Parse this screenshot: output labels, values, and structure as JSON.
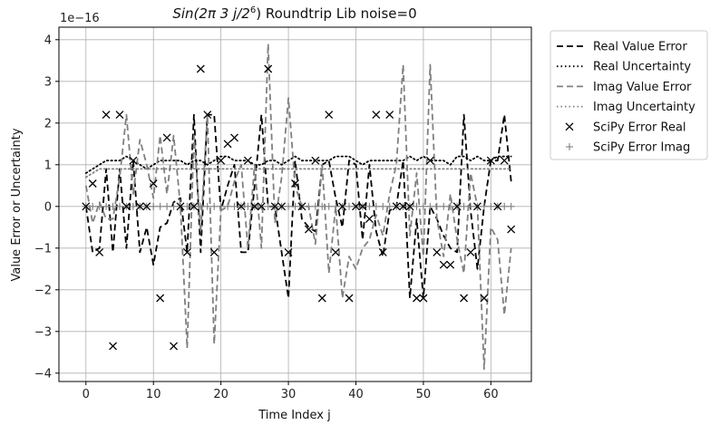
{
  "chart_data": {
    "type": "line",
    "title_prefix": "Sin(2π 3 j/2",
    "title_exp": "6",
    "title_suffix": ") Roundtrip Lib noise=0",
    "xlabel": "Time Index j",
    "ylabel": "Value Error or Uncertainty",
    "y_multiplier_label": "1e−16",
    "xlim": [
      -4,
      66
    ],
    "ylim": [
      -4.2,
      4.3
    ],
    "xticks": [
      0,
      10,
      20,
      30,
      40,
      50,
      60
    ],
    "yticks": [
      -4,
      -3,
      -2,
      -1,
      0,
      1,
      2,
      3,
      4
    ],
    "grid": true,
    "legend_position": "outside-right-top",
    "x": [
      0,
      1,
      2,
      3,
      4,
      5,
      6,
      7,
      8,
      9,
      10,
      11,
      12,
      13,
      14,
      15,
      16,
      17,
      18,
      19,
      20,
      21,
      22,
      23,
      24,
      25,
      26,
      27,
      28,
      29,
      30,
      31,
      32,
      33,
      34,
      35,
      36,
      37,
      38,
      39,
      40,
      41,
      42,
      43,
      44,
      45,
      46,
      47,
      48,
      49,
      50,
      51,
      52,
      53,
      54,
      55,
      56,
      57,
      58,
      59,
      60,
      61,
      62,
      63
    ],
    "series": [
      {
        "name": "Real Value Error",
        "style": "dashed",
        "color": "#000000",
        "values": [
          0,
          -1.1,
          -1.0,
          0.9,
          -1.1,
          0.9,
          -1.0,
          1.1,
          -1.1,
          -0.5,
          -1.4,
          -0.5,
          -0.4,
          0.1,
          0.2,
          -1.1,
          2.2,
          -1.1,
          2.2,
          2.2,
          -0.1,
          0.5,
          1.0,
          -1.1,
          -1.1,
          0.5,
          2.2,
          0.0,
          0.0,
          -1.1,
          -2.2,
          1.1,
          -0.3,
          -0.5,
          -0.6,
          1.0,
          1.1,
          0.2,
          -0.5,
          1.1,
          1.0,
          -0.8,
          1.0,
          -0.6,
          -1.2,
          -0.1,
          0.0,
          1.1,
          -2.2,
          -0.3,
          -2.2,
          0.0,
          -0.3,
          -0.7,
          -1.0,
          -1.1,
          2.2,
          -0.1,
          -1.5,
          0.0,
          1.1,
          1.1,
          2.2,
          0.6
        ]
      },
      {
        "name": "Real Uncertainty",
        "style": "dotted",
        "color": "#000000",
        "values": [
          0.8,
          0.9,
          1.0,
          1.1,
          1.1,
          1.1,
          1.2,
          1.1,
          1.0,
          0.9,
          1.0,
          1.1,
          1.1,
          1.1,
          1.1,
          1.0,
          1.1,
          1.1,
          1.0,
          1.1,
          1.2,
          1.2,
          1.1,
          1.1,
          1.1,
          1.0,
          1.0,
          1.1,
          1.1,
          1.0,
          1.1,
          1.2,
          1.1,
          1.1,
          1.1,
          1.1,
          1.1,
          1.2,
          1.2,
          1.2,
          1.1,
          1.0,
          1.1,
          1.1,
          1.1,
          1.1,
          1.1,
          1.1,
          1.2,
          1.1,
          1.2,
          1.1,
          1.1,
          1.1,
          1.0,
          1.2,
          1.2,
          1.1,
          1.2,
          1.1,
          1.1,
          1.2,
          1.2,
          1.2
        ]
      },
      {
        "name": "Imag Value Error",
        "style": "dashed",
        "color": "#808080",
        "values": [
          0.5,
          -0.4,
          0.1,
          -0.3,
          -0.3,
          0.7,
          2.2,
          0.3,
          1.6,
          1.0,
          0.2,
          1.7,
          0.3,
          1.7,
          0.0,
          -3.4,
          1.7,
          -0.6,
          2.2,
          -3.3,
          -0.1,
          0.0,
          0.6,
          1.0,
          -1.0,
          1.0,
          -1.0,
          3.9,
          -0.4,
          0.7,
          2.6,
          0.5,
          0.0,
          0.0,
          -0.9,
          1.0,
          -1.6,
          0.0,
          -2.2,
          -1.2,
          -1.5,
          -1.0,
          -0.8,
          -0.2,
          -0.7,
          0.3,
          1.0,
          3.4,
          -0.7,
          0.8,
          -1.2,
          3.4,
          -0.3,
          -1.2,
          0.3,
          -0.8,
          -1.6,
          0.8,
          0.0,
          -3.9,
          -0.5,
          -0.8,
          -2.6,
          -1.0
        ]
      },
      {
        "name": "Imag Uncertainty",
        "style": "dotted",
        "color": "#808080",
        "values": [
          0.7,
          0.8,
          0.9,
          0.9,
          0.9,
          0.9,
          0.9,
          0.9,
          0.9,
          0.9,
          0.9,
          0.9,
          0.9,
          0.9,
          0.9,
          0.9,
          0.9,
          0.9,
          0.9,
          0.9,
          0.9,
          0.9,
          0.9,
          0.9,
          0.9,
          0.9,
          0.9,
          0.9,
          0.9,
          0.9,
          0.9,
          0.9,
          0.9,
          0.9,
          0.9,
          0.9,
          0.9,
          0.9,
          0.9,
          0.9,
          0.9,
          0.9,
          0.9,
          0.9,
          0.9,
          0.9,
          0.9,
          0.9,
          0.9,
          0.9,
          0.9,
          0.9,
          0.9,
          0.9,
          0.9,
          0.9,
          0.9,
          0.9,
          0.9,
          0.9,
          0.9,
          0.9,
          0.9,
          0.9
        ]
      }
    ],
    "scatter_series": [
      {
        "name": "SciPy Error Real",
        "marker": "x",
        "color": "#000000",
        "points": [
          [
            0,
            0
          ],
          [
            1,
            0.55
          ],
          [
            2,
            -1.1
          ],
          [
            3,
            2.2
          ],
          [
            4,
            -3.35
          ],
          [
            5,
            2.2
          ],
          [
            6,
            0
          ],
          [
            7,
            1.1
          ],
          [
            8,
            0
          ],
          [
            9,
            0
          ],
          [
            10,
            0.55
          ],
          [
            11,
            -2.2
          ],
          [
            12,
            1.65
          ],
          [
            13,
            -3.35
          ],
          [
            14,
            0
          ],
          [
            15,
            -1.1
          ],
          [
            16,
            0
          ],
          [
            17,
            3.3
          ],
          [
            18,
            2.2
          ],
          [
            19,
            -1.1
          ],
          [
            20,
            1.1
          ],
          [
            21,
            1.5
          ],
          [
            22,
            1.65
          ],
          [
            23,
            0
          ],
          [
            24,
            1.1
          ],
          [
            25,
            0
          ],
          [
            26,
            0
          ],
          [
            27,
            3.3
          ],
          [
            28,
            0
          ],
          [
            29,
            0
          ],
          [
            30,
            -1.1
          ],
          [
            31,
            0.55
          ],
          [
            32,
            0
          ],
          [
            33,
            -0.55
          ],
          [
            34,
            1.1
          ],
          [
            35,
            -2.2
          ],
          [
            36,
            2.2
          ],
          [
            37,
            -1.1
          ],
          [
            38,
            0
          ],
          [
            39,
            -2.2
          ],
          [
            40,
            0
          ],
          [
            41,
            0
          ],
          [
            42,
            -0.3
          ],
          [
            43,
            2.2
          ],
          [
            44,
            -1.1
          ],
          [
            45,
            2.2
          ],
          [
            46,
            0
          ],
          [
            47,
            0
          ],
          [
            48,
            0
          ],
          [
            49,
            -2.2
          ],
          [
            50,
            -2.2
          ],
          [
            51,
            1.1
          ],
          [
            52,
            -1.1
          ],
          [
            53,
            -1.4
          ],
          [
            54,
            -1.4
          ],
          [
            55,
            0
          ],
          [
            56,
            -2.2
          ],
          [
            57,
            -1.1
          ],
          [
            58,
            0
          ],
          [
            59,
            -2.2
          ],
          [
            60,
            1.1
          ],
          [
            61,
            0
          ],
          [
            62,
            1.1
          ],
          [
            63,
            -0.55
          ]
        ]
      },
      {
        "name": "SciPy Error Imag",
        "marker": "+",
        "color": "#808080",
        "points": [
          [
            0,
            0
          ],
          [
            1,
            0
          ],
          [
            2,
            0
          ],
          [
            3,
            0
          ],
          [
            4,
            0
          ],
          [
            5,
            0
          ],
          [
            6,
            0
          ],
          [
            7,
            0
          ],
          [
            8,
            0
          ],
          [
            9,
            0
          ],
          [
            10,
            0
          ],
          [
            11,
            0
          ],
          [
            12,
            0
          ],
          [
            13,
            0
          ],
          [
            14,
            0
          ],
          [
            15,
            0
          ],
          [
            16,
            0
          ],
          [
            17,
            0
          ],
          [
            18,
            0
          ],
          [
            19,
            0
          ],
          [
            20,
            0
          ],
          [
            21,
            0
          ],
          [
            22,
            0
          ],
          [
            23,
            0
          ],
          [
            24,
            0
          ],
          [
            25,
            0
          ],
          [
            26,
            0
          ],
          [
            27,
            0
          ],
          [
            28,
            0
          ],
          [
            29,
            0
          ],
          [
            30,
            0
          ],
          [
            31,
            0
          ],
          [
            32,
            0
          ],
          [
            33,
            0
          ],
          [
            34,
            0
          ],
          [
            35,
            0
          ],
          [
            36,
            0
          ],
          [
            37,
            0
          ],
          [
            38,
            0
          ],
          [
            39,
            0
          ],
          [
            40,
            0
          ],
          [
            41,
            0
          ],
          [
            42,
            0
          ],
          [
            43,
            0
          ],
          [
            44,
            0
          ],
          [
            45,
            0
          ],
          [
            46,
            0
          ],
          [
            47,
            0
          ],
          [
            48,
            0
          ],
          [
            49,
            0
          ],
          [
            50,
            0
          ],
          [
            51,
            0
          ],
          [
            52,
            0
          ],
          [
            53,
            0
          ],
          [
            54,
            0
          ],
          [
            55,
            0
          ],
          [
            56,
            0
          ],
          [
            57,
            0
          ],
          [
            58,
            0
          ],
          [
            59,
            0
          ],
          [
            60,
            0
          ],
          [
            61,
            0
          ],
          [
            62,
            0
          ],
          [
            63,
            0
          ]
        ]
      }
    ],
    "legend_entries": [
      {
        "label": "Real Value Error",
        "kind": "line",
        "style": "dashed",
        "color": "#000000"
      },
      {
        "label": "Real Uncertainty",
        "kind": "line",
        "style": "dotted",
        "color": "#000000"
      },
      {
        "label": "Imag Value Error",
        "kind": "line",
        "style": "dashed",
        "color": "#808080"
      },
      {
        "label": "Imag Uncertainty",
        "kind": "line",
        "style": "dotted",
        "color": "#808080"
      },
      {
        "label": "SciPy Error Real",
        "kind": "marker",
        "marker": "x",
        "color": "#000000"
      },
      {
        "label": "SciPy Error Imag",
        "kind": "marker",
        "marker": "+",
        "color": "#808080"
      }
    ]
  }
}
